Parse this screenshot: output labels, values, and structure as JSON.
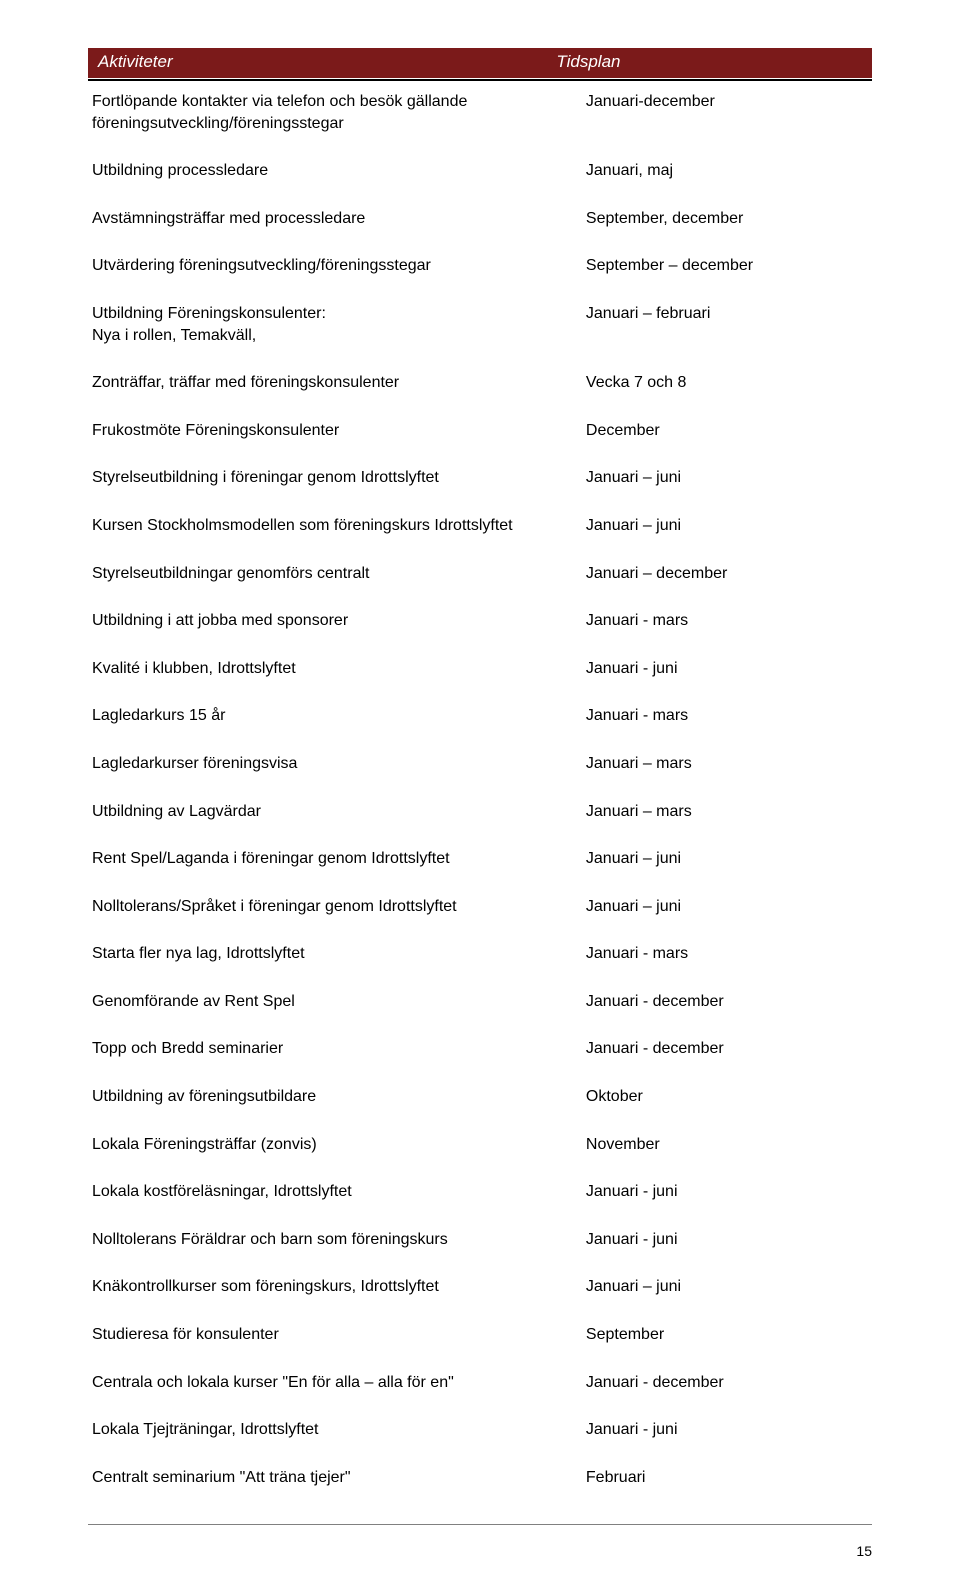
{
  "header": {
    "col1": "Aktiviteter",
    "col2": "Tidsplan",
    "bg_color": "#7b1a1a",
    "text_color": "#ffffff"
  },
  "rows": [
    {
      "activity": "Fortlöpande kontakter via telefon och besök gällande föreningsutveckling/föreningsstegar",
      "time": "Januari-december"
    },
    {
      "activity": "Utbildning processledare",
      "time": "Januari, maj"
    },
    {
      "activity": "Avstämningsträffar med processledare",
      "time": "September, december"
    },
    {
      "activity": "Utvärdering föreningsutveckling/föreningsstegar",
      "time": "September – december"
    },
    {
      "activity": "Utbildning Föreningskonsulenter:\nNya i rollen, Temakväll,",
      "time": "Januari – februari"
    },
    {
      "activity": "Zonträffar, träffar med föreningskonsulenter",
      "time": "Vecka 7 och 8"
    },
    {
      "activity": "Frukostmöte Föreningskonsulenter",
      "time": "December"
    },
    {
      "activity": "Styrelseutbildning i föreningar genom Idrottslyftet",
      "time": "Januari – juni"
    },
    {
      "activity": "Kursen Stockholmsmodellen som föreningskurs Idrottslyftet",
      "time": "Januari – juni"
    },
    {
      "activity": "Styrelseutbildningar genomförs centralt",
      "time": "Januari – december"
    },
    {
      "activity": "Utbildning i att jobba med sponsorer",
      "time": "Januari - mars"
    },
    {
      "activity": "Kvalité i klubben, Idrottslyftet",
      "time": "Januari - juni"
    },
    {
      "activity": "Lagledarkurs 15 år",
      "time": "Januari - mars"
    },
    {
      "activity": "Lagledarkurser föreningsvisa",
      "time": "Januari – mars"
    },
    {
      "activity": "Utbildning av Lagvärdar",
      "time": "Januari – mars"
    },
    {
      "activity": "Rent Spel/Laganda i föreningar genom Idrottslyftet",
      "time": "Januari – juni"
    },
    {
      "activity": "Nolltolerans/Språket i föreningar genom Idrottslyftet",
      "time": "Januari – juni"
    },
    {
      "activity": "Starta fler nya lag, Idrottslyftet",
      "time": "Januari - mars"
    },
    {
      "activity": "Genomförande av Rent Spel",
      "time": "Januari - december"
    },
    {
      "activity": "Topp och Bredd seminarier",
      "time": "Januari - december"
    },
    {
      "activity": "Utbildning av föreningsutbildare",
      "time": "Oktober"
    },
    {
      "activity": "Lokala Föreningsträffar (zonvis)",
      "time": "November"
    },
    {
      "activity": "Lokala kostföreläsningar, Idrottslyftet",
      "time": "Januari - juni"
    },
    {
      "activity": "Nolltolerans Föräldrar och barn som föreningskurs",
      "time": "Januari - juni"
    },
    {
      "activity": "Knäkontrollkurser som föreningskurs, Idrottslyftet",
      "time": "Januari – juni"
    },
    {
      "activity": "Studieresa för konsulenter",
      "time": "September"
    },
    {
      "activity": "Centrala och lokala kurser \"En för alla – alla för en\"",
      "time": "Januari - december"
    },
    {
      "activity": "Lokala Tjejträningar, Idrottslyftet",
      "time": "Januari - juni"
    },
    {
      "activity": "Centralt seminarium \"Att träna tjejer\"",
      "time": "Februari"
    }
  ],
  "page_number": "15",
  "footer_rule_color": "#808080"
}
